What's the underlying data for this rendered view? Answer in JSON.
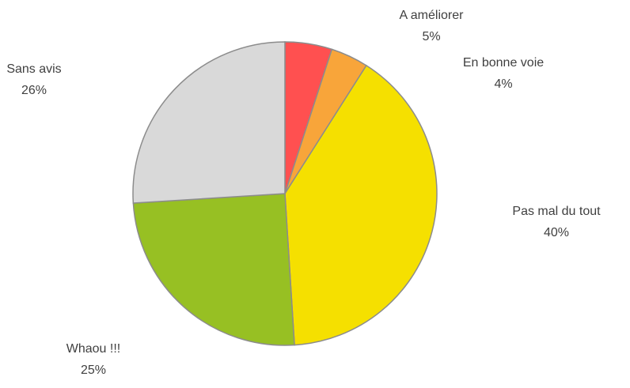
{
  "chart_data": {
    "type": "pie",
    "categories": [
      "A améliorer",
      "En bonne voie",
      "Pas mal du tout",
      "Whaou !!!",
      "Sans avis"
    ],
    "values": [
      5,
      4,
      40,
      25,
      26
    ],
    "value_labels": [
      "5%",
      "4%",
      "40%",
      "25%",
      "26%"
    ],
    "colors": [
      "#ff5050",
      "#f8a53a",
      "#f5e000",
      "#97c023",
      "#d9d9d9"
    ]
  }
}
